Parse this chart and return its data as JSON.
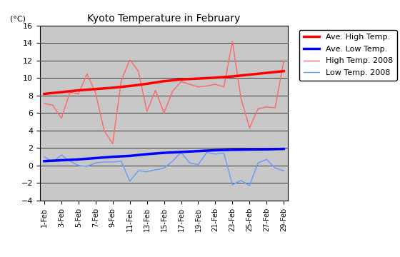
{
  "title": "Kyoto Temperature in February",
  "ylabel": "(°C)",
  "plot_bg_color": "#c8c8c8",
  "fig_bg_color": "#ffffff",
  "xlim_min": -0.5,
  "xlim_max": 28.5,
  "ylim_min": -4,
  "ylim_max": 16,
  "yticks": [
    -4,
    -2,
    0,
    2,
    4,
    6,
    8,
    10,
    12,
    14,
    16
  ],
  "x_labels": [
    "1-Feb",
    "3-Feb",
    "5-Feb",
    "7-Feb",
    "9-Feb",
    "11-Feb",
    "13-Feb",
    "15-Feb",
    "17-Feb",
    "19-Feb",
    "21-Feb",
    "23-Feb",
    "25-Feb",
    "27-Feb",
    "29-Feb"
  ],
  "x_positions": [
    0,
    2,
    4,
    6,
    8,
    10,
    12,
    14,
    16,
    18,
    20,
    22,
    24,
    26,
    28
  ],
  "ave_high_temp": {
    "label": "Ave. High Temp.",
    "color": "#ff0000",
    "linewidth": 2.5,
    "x": [
      0,
      2,
      4,
      6,
      8,
      10,
      12,
      14,
      16,
      18,
      20,
      22,
      24,
      26,
      28
    ],
    "y": [
      8.2,
      8.4,
      8.6,
      8.75,
      8.9,
      9.1,
      9.35,
      9.65,
      9.85,
      9.95,
      10.05,
      10.2,
      10.4,
      10.6,
      10.8
    ]
  },
  "ave_low_temp": {
    "label": "Ave. Low Temp.",
    "color": "#0000ff",
    "linewidth": 2.5,
    "x": [
      0,
      2,
      4,
      6,
      8,
      10,
      12,
      14,
      16,
      18,
      20,
      22,
      24,
      26,
      28
    ],
    "y": [
      0.5,
      0.6,
      0.7,
      0.85,
      1.0,
      1.1,
      1.3,
      1.45,
      1.55,
      1.65,
      1.75,
      1.8,
      1.83,
      1.85,
      1.9
    ]
  },
  "high_temp_2008": {
    "label": "High Temp. 2008",
    "color": "#ff6666",
    "linewidth": 1,
    "x": [
      0,
      1,
      2,
      3,
      4,
      5,
      6,
      7,
      8,
      9,
      10,
      11,
      12,
      13,
      14,
      15,
      16,
      17,
      18,
      19,
      20,
      21,
      22,
      23,
      24,
      25,
      26,
      27,
      28
    ],
    "y": [
      7.1,
      6.9,
      5.4,
      8.4,
      8.2,
      10.5,
      8.3,
      4.0,
      2.5,
      9.7,
      12.1,
      10.8,
      6.2,
      8.6,
      6.0,
      8.5,
      9.6,
      9.3,
      9.0,
      9.1,
      9.3,
      9.0,
      14.2,
      7.7,
      4.3,
      6.5,
      6.7,
      6.6,
      12.0
    ]
  },
  "low_temp_2008": {
    "label": "Low Temp. 2008",
    "color": "#6699ff",
    "linewidth": 1,
    "x": [
      0,
      1,
      2,
      3,
      4,
      5,
      6,
      7,
      8,
      9,
      10,
      11,
      12,
      13,
      14,
      15,
      16,
      17,
      18,
      19,
      20,
      21,
      22,
      23,
      24,
      25,
      26,
      27,
      28
    ],
    "y": [
      1.0,
      0.4,
      1.2,
      0.5,
      0.0,
      -0.1,
      0.3,
      0.4,
      0.4,
      0.5,
      -1.8,
      -0.6,
      -0.7,
      -0.5,
      -0.3,
      0.5,
      1.5,
      0.3,
      0.1,
      1.5,
      1.3,
      1.4,
      -2.2,
      -1.7,
      -2.3,
      0.3,
      0.7,
      -0.3,
      -0.6
    ]
  },
  "legend": {
    "fontsize": 8,
    "facecolor": "#ffffff",
    "edgecolor": "#000000"
  }
}
